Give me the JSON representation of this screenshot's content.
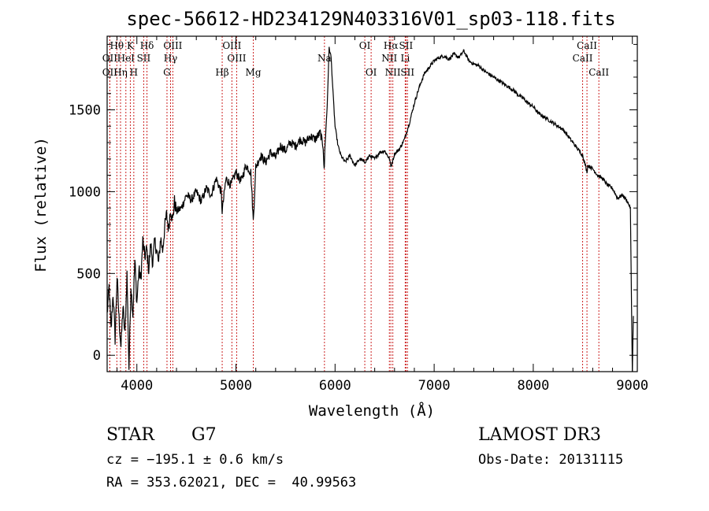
{
  "chart_data": {
    "type": "line",
    "title": "spec-56612-HD234129N403316V01_sp03-118.fits",
    "xlabel": "Wavelength (Å)",
    "ylabel": "Flux (relative)",
    "xlim": [
      3700,
      9050
    ],
    "ylim": [
      -100,
      1950
    ],
    "x_ticks": [
      4000,
      5000,
      6000,
      7000,
      8000,
      9000
    ],
    "y_ticks": [
      0,
      500,
      1000,
      1500
    ],
    "series": [
      {
        "name": "spectrum",
        "x": [
          3700,
          3720,
          3740,
          3760,
          3780,
          3800,
          3820,
          3840,
          3860,
          3880,
          3900,
          3920,
          3940,
          3960,
          3980,
          4000,
          4020,
          4040,
          4060,
          4080,
          4100,
          4120,
          4140,
          4160,
          4180,
          4200,
          4220,
          4240,
          4260,
          4280,
          4300,
          4320,
          4340,
          4360,
          4380,
          4400,
          4450,
          4500,
          4550,
          4600,
          4650,
          4700,
          4750,
          4800,
          4850,
          4861,
          4880,
          4900,
          4950,
          5000,
          5050,
          5100,
          5150,
          5175,
          5200,
          5250,
          5300,
          5350,
          5400,
          5450,
          5500,
          5550,
          5600,
          5650,
          5700,
          5750,
          5800,
          5850,
          5880,
          5890,
          5900,
          5920,
          5940,
          5960,
          5980,
          6000,
          6030,
          6060,
          6100,
          6150,
          6200,
          6250,
          6300,
          6350,
          6400,
          6450,
          6500,
          6550,
          6563,
          6600,
          6650,
          6700,
          6750,
          6800,
          6850,
          6900,
          6950,
          7000,
          7050,
          7100,
          7150,
          7200,
          7250,
          7300,
          7350,
          7400,
          7450,
          7500,
          7550,
          7600,
          7650,
          7700,
          7750,
          7800,
          7850,
          7900,
          7950,
          8000,
          8050,
          8100,
          8150,
          8200,
          8250,
          8300,
          8350,
          8400,
          8450,
          8500,
          8542,
          8550,
          8600,
          8650,
          8700,
          8750,
          8800,
          8850,
          8900,
          8950,
          8980,
          9000,
          9010
        ],
        "values": [
          250,
          420,
          150,
          380,
          100,
          480,
          220,
          50,
          300,
          120,
          500,
          -80,
          430,
          250,
          580,
          320,
          520,
          460,
          700,
          600,
          650,
          520,
          680,
          560,
          700,
          640,
          560,
          720,
          640,
          780,
          860,
          770,
          900,
          820,
          940,
          880,
          900,
          980,
          950,
          1000,
          940,
          1020,
          980,
          1080,
          1000,
          880,
          980,
          1080,
          1040,
          1120,
          1060,
          1160,
          1120,
          820,
          1150,
          1220,
          1180,
          1240,
          1210,
          1280,
          1250,
          1300,
          1280,
          1320,
          1300,
          1340,
          1320,
          1360,
          1280,
          1120,
          1300,
          1520,
          1880,
          1820,
          1600,
          1400,
          1280,
          1220,
          1180,
          1220,
          1160,
          1200,
          1180,
          1220,
          1200,
          1240,
          1250,
          1200,
          1150,
          1230,
          1260,
          1320,
          1420,
          1540,
          1640,
          1720,
          1760,
          1800,
          1820,
          1830,
          1810,
          1840,
          1820,
          1860,
          1800,
          1780,
          1770,
          1740,
          1720,
          1700,
          1680,
          1660,
          1640,
          1620,
          1590,
          1570,
          1540,
          1520,
          1480,
          1460,
          1440,
          1420,
          1400,
          1380,
          1340,
          1300,
          1260,
          1220,
          1120,
          1160,
          1140,
          1100,
          1080,
          1040,
          1020,
          960,
          980,
          940,
          900,
          -120,
          240
        ]
      }
    ],
    "spectral_lines": [
      {
        "label": "Hθ",
        "wavelength": 3798,
        "row": 1
      },
      {
        "label": "OII",
        "wavelength": 3727,
        "row": 2
      },
      {
        "label": "OII",
        "wavelength": 3727,
        "row": 3
      },
      {
        "label": "K",
        "wavelength": 3934,
        "row": 1
      },
      {
        "label": "HeI",
        "wavelength": 3889,
        "row": 2
      },
      {
        "label": "Hη",
        "wavelength": 3835,
        "row": 3
      },
      {
        "label": "SII",
        "wavelength": 4069,
        "row": 2
      },
      {
        "label": "H",
        "wavelength": 3969,
        "row": 3
      },
      {
        "label": "Hδ",
        "wavelength": 4102,
        "row": 1
      },
      {
        "label": "OIII",
        "wavelength": 4363,
        "row": 1
      },
      {
        "label": "Hγ",
        "wavelength": 4340,
        "row": 2
      },
      {
        "label": "G",
        "wavelength": 4304,
        "row": 3
      },
      {
        "label": "OIII",
        "wavelength": 4959,
        "row": 1
      },
      {
        "label": "OIII",
        "wavelength": 5007,
        "row": 2
      },
      {
        "label": "Hβ",
        "wavelength": 4861,
        "row": 3
      },
      {
        "label": "Mg",
        "wavelength": 5175,
        "row": 3
      },
      {
        "label": "Na",
        "wavelength": 5893,
        "row": 2
      },
      {
        "label": "OI",
        "wavelength": 6300,
        "row": 1
      },
      {
        "label": "OI",
        "wavelength": 6364,
        "row": 3
      },
      {
        "label": "Hα",
        "wavelength": 6563,
        "row": 1
      },
      {
        "label": "SII",
        "wavelength": 6716,
        "row": 1
      },
      {
        "label": "NII",
        "wavelength": 6548,
        "row": 2
      },
      {
        "label": "Li",
        "wavelength": 6708,
        "row": 2
      },
      {
        "label": "NII",
        "wavelength": 6583,
        "row": 3
      },
      {
        "label": "SII",
        "wavelength": 6731,
        "row": 3
      },
      {
        "label": "CaII",
        "wavelength": 8542,
        "row": 1
      },
      {
        "label": "CaII",
        "wavelength": 8498,
        "row": 2
      },
      {
        "label": "CaII",
        "wavelength": 8662,
        "row": 3
      }
    ],
    "line_color": "#cc2222"
  },
  "info": {
    "object_class": "STAR",
    "subclass": "G7",
    "survey": "LAMOST DR3",
    "cz": "cz = −195.1 ± 0.6 km/s",
    "obs_date": "Obs-Date: 20131115",
    "coords": "RA = 353.62021, DEC =  40.99563"
  }
}
